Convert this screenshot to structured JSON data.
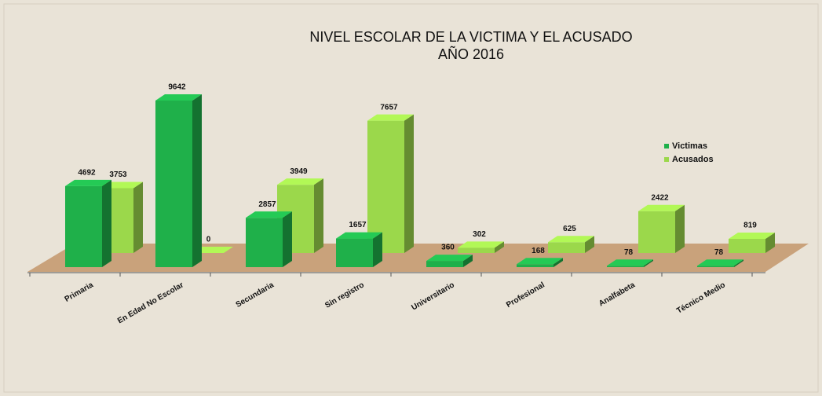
{
  "chart_data": {
    "type": "bar3d",
    "title": "NIVEL ESCOLAR DE LA VICTIMA Y EL ACUSADO",
    "subtitle": "AÑO 2016",
    "categories": [
      "Primaria",
      "En Edad No Escolar",
      "Secundaria",
      "Sin registro",
      "Universitario",
      "Profesional",
      "Analfabeta",
      "Técnico Medio"
    ],
    "series": [
      {
        "name": "Victimas",
        "color": "#1fb04a",
        "values": [
          4692,
          9642,
          2857,
          1657,
          360,
          168,
          78,
          78
        ]
      },
      {
        "name": "Acusados",
        "color": "#9bd84b",
        "values": [
          3753,
          0,
          3949,
          7657,
          302,
          625,
          2422,
          819
        ]
      }
    ],
    "legend": "right"
  }
}
